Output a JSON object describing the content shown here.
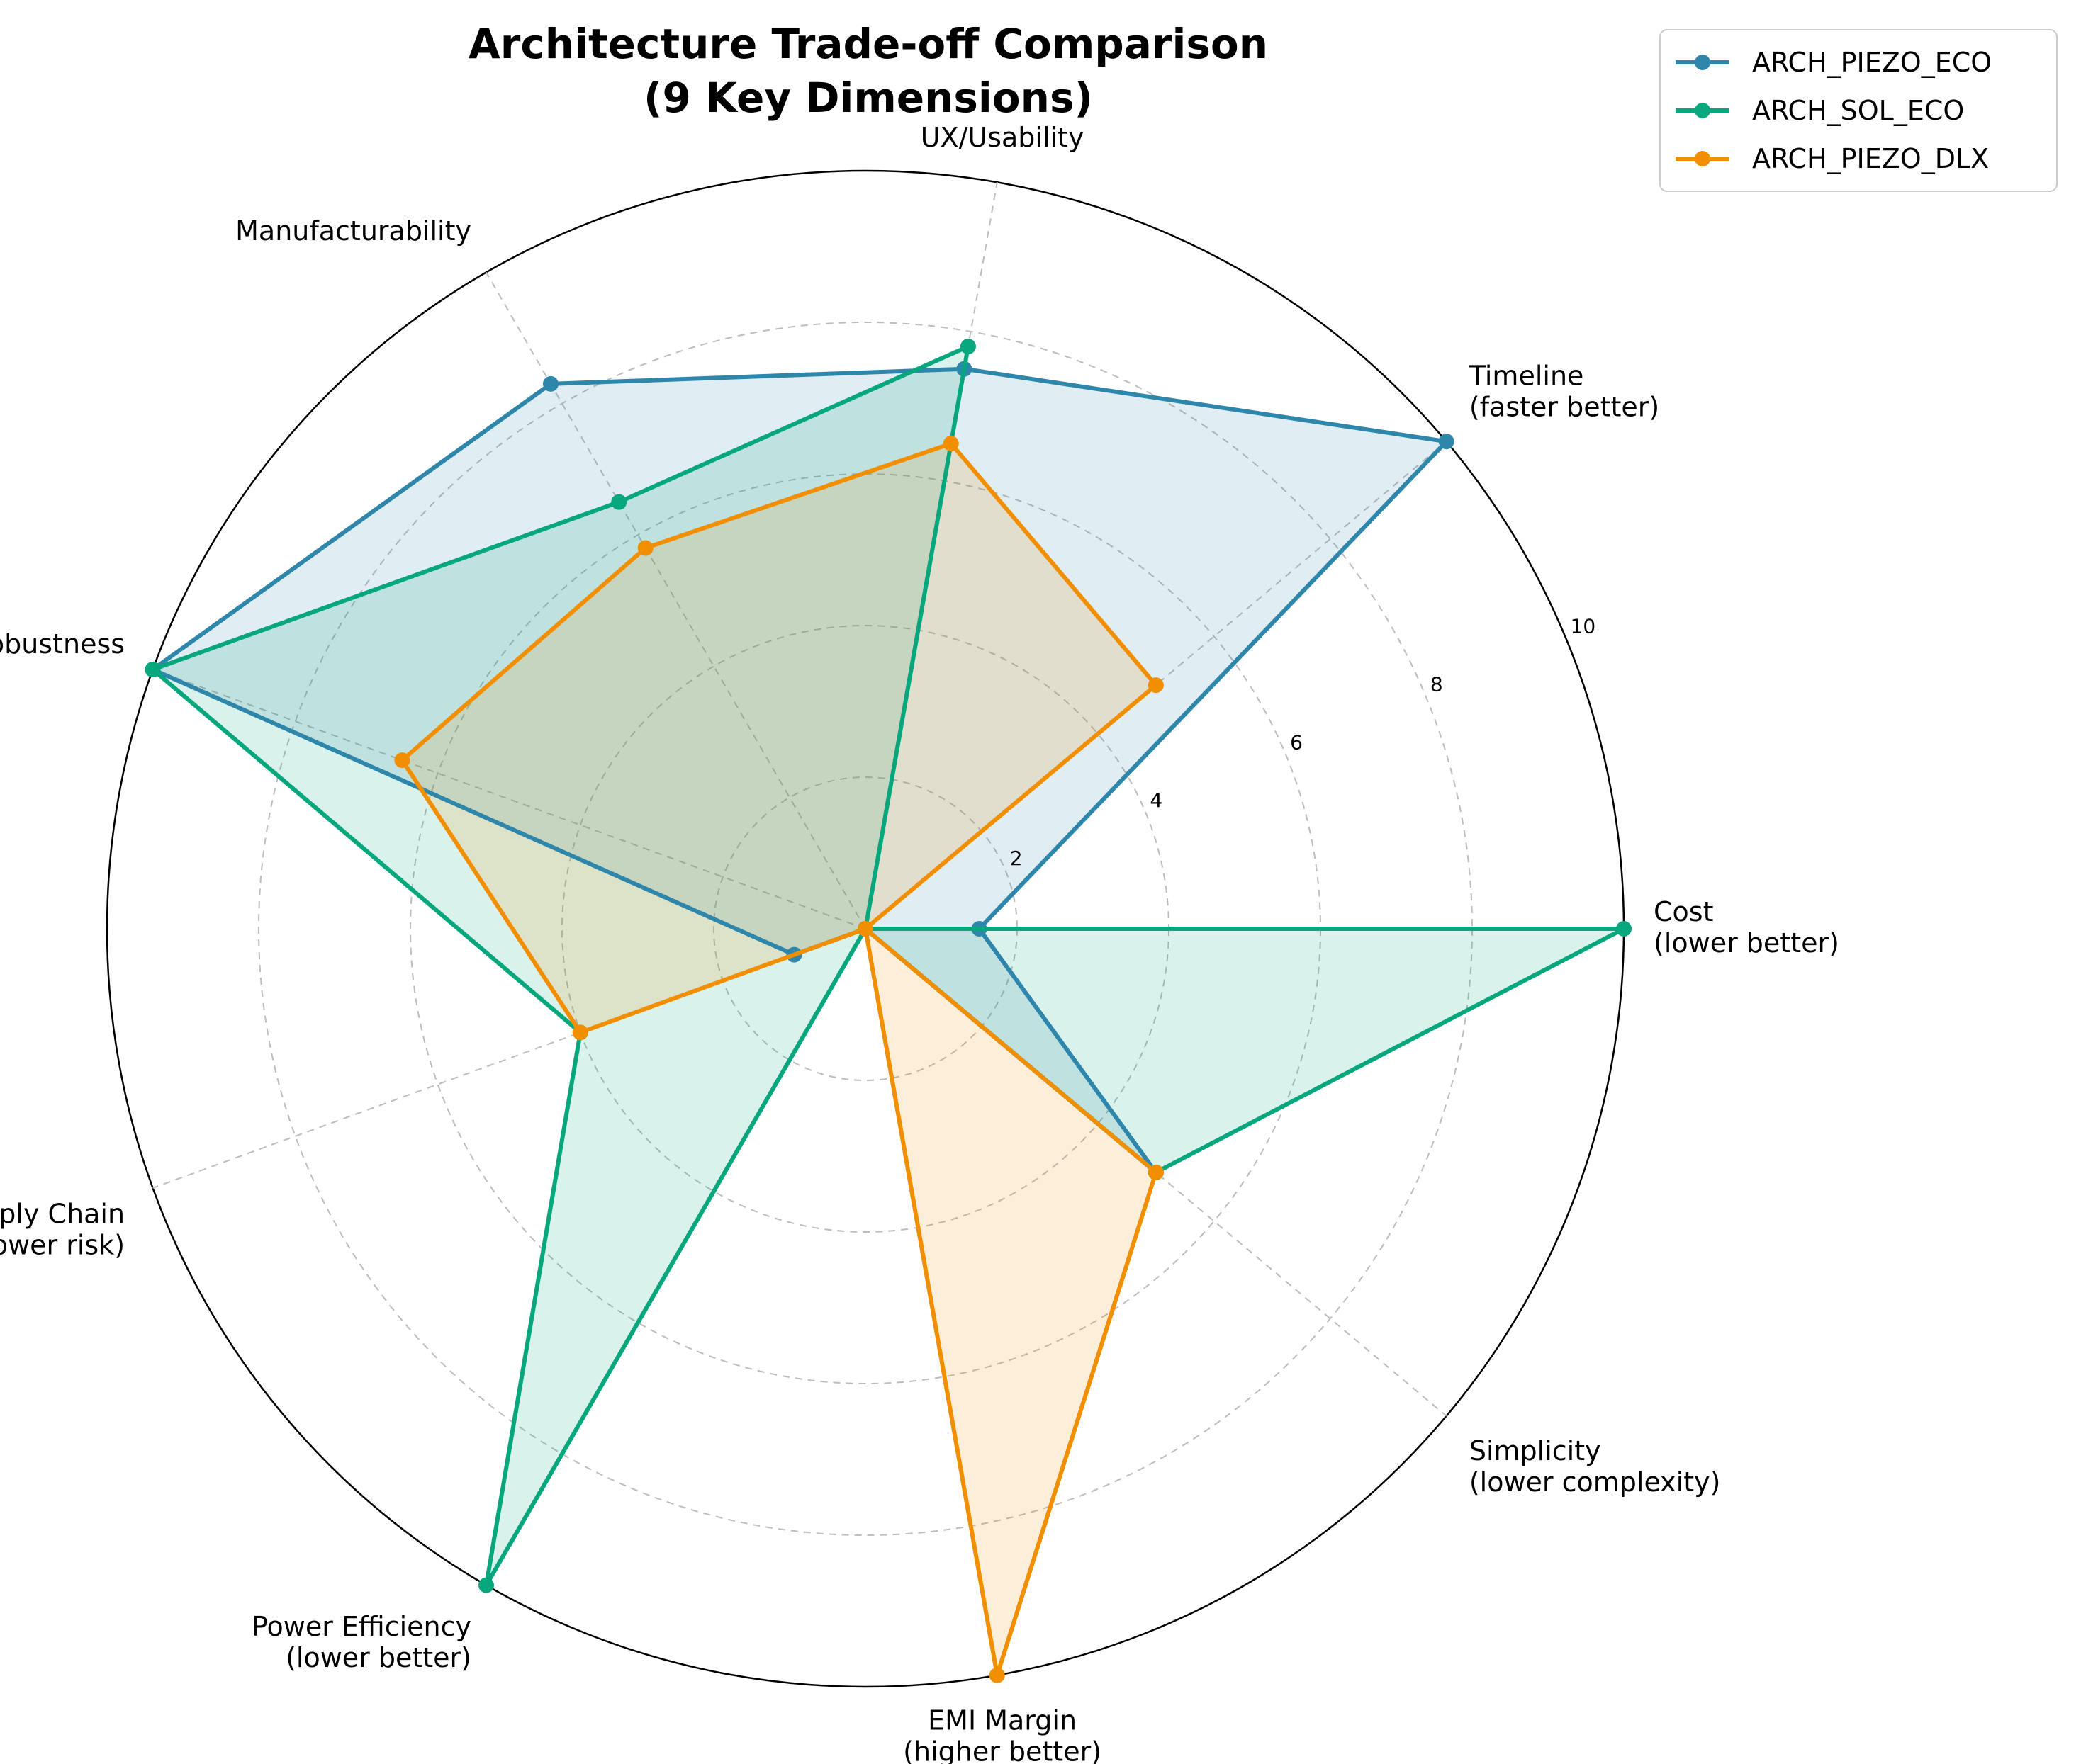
{
  "chart_data": {
    "type": "radar",
    "title": [
      "Architecture Trade-off Comparison",
      "(9 Key Dimensions)"
    ],
    "axes": [
      [
        "Cost",
        "(lower better)"
      ],
      [
        "Timeline",
        "(faster better)"
      ],
      [
        "UX/Usability"
      ],
      [
        "Manufacturability"
      ],
      [
        "Robustness"
      ],
      [
        "Supply Chain",
        "(lower risk)"
      ],
      [
        "Power Efficiency",
        "(lower better)"
      ],
      [
        "EMI Margin",
        "(higher better)"
      ],
      [
        "Simplicity",
        "(lower complexity)"
      ]
    ],
    "radial_ticks": [
      2,
      4,
      6,
      8,
      10
    ],
    "rlim": [
      0,
      10
    ],
    "grid": true,
    "legend_position": "top-right",
    "series": [
      {
        "name": "ARCH_PIEZO_ECO",
        "color": "#2E86AB",
        "values": [
          1.5,
          10,
          7.5,
          8.3,
          10,
          1,
          0,
          0,
          5
        ]
      },
      {
        "name": "ARCH_SOL_ECO",
        "color": "#06A77D",
        "values": [
          10,
          0,
          7.8,
          6.5,
          10,
          4,
          10,
          0,
          5
        ]
      },
      {
        "name": "ARCH_PIEZO_DLX",
        "color": "#F18F01",
        "values": [
          0,
          5,
          6.5,
          5.8,
          6.5,
          4,
          0,
          10,
          5
        ]
      }
    ]
  }
}
